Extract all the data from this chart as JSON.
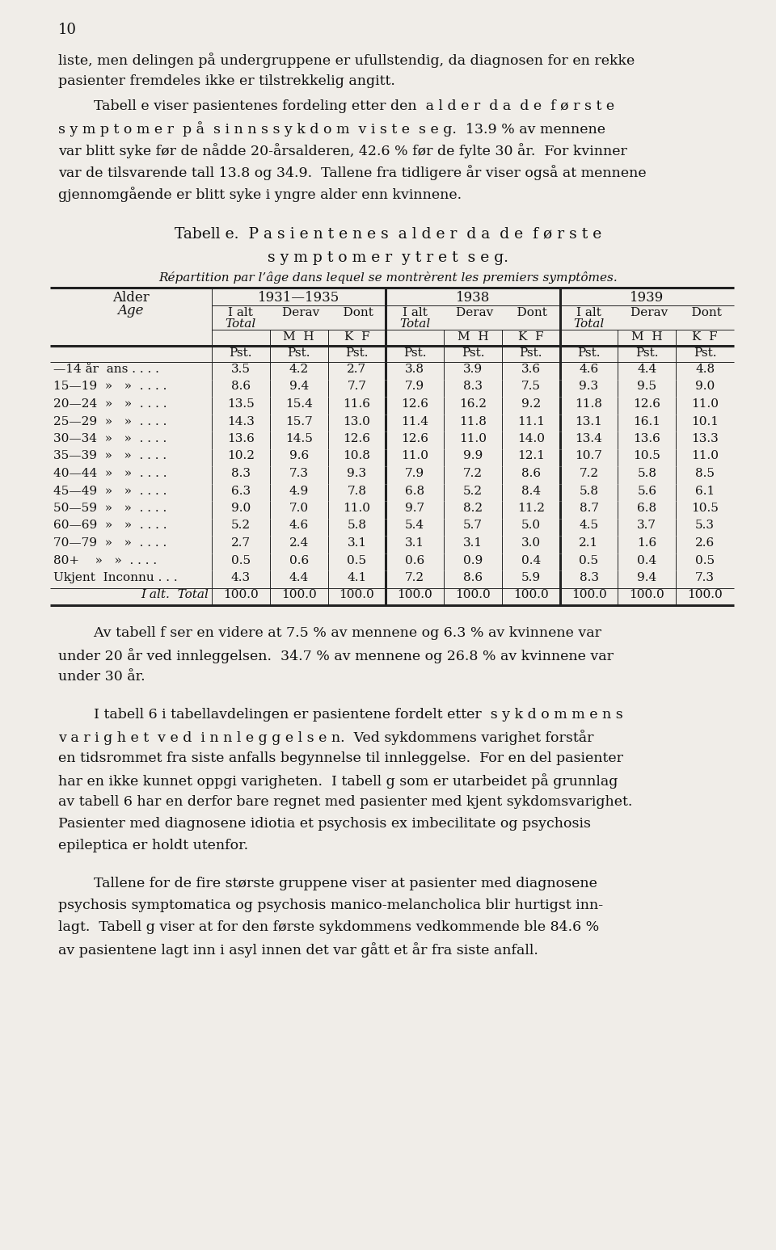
{
  "page_number": "10",
  "bg_color": "#f0ede8",
  "text_color": "#1a1a1a",
  "para1": "liste, men delingen på undergruppene er ufullstendig, da diagnosen for en rekke\npasienter fremdeles ikke er tilstrekkelig angitt.",
  "para2_line1": "        Tabell e viser pasientenes fordeling etter den  a l d e r  d a  d e  f ø r s t e",
  "para2_line2": "s y m p t o m e r  p å  s i n n s s y k d o m  v i s t e  s e g.  13.9 % av mennene",
  "para2_line3": "var blitt syke før de nådde 20-årsalderen, 42.6 % før de fylte 30 år.  For kvinner",
  "para2_line4": "var de tilsvarende tall 13.8 og 34.9.  Tallene fra tidligere år viser også at mennene",
  "para2_line5": "gjennomgående er blitt syke i yngre alder enn kvinnene.",
  "table_title1": "Tabell e.  P a s i e n t e n e s  a l d e r  d a  d e  f ø r s t e",
  "table_title2": "s y m p t o m e r  y t r e t  s e g.",
  "table_subtitle": "Répartition par l’âge dans lequel se montrèrent les premiers symptômes.",
  "col_headers_years": [
    "1931—1935",
    "1938",
    "1939"
  ],
  "rows": [
    {
      "label": "—14 år  ans . . . .",
      "v": [
        "3.5",
        "4.2",
        "2.7",
        "3.8",
        "3.9",
        "3.6",
        "4.6",
        "4.4",
        "4.8"
      ]
    },
    {
      "label": "15—19  »   »  . . . .",
      "v": [
        "8.6",
        "9.4",
        "7.7",
        "7.9",
        "8.3",
        "7.5",
        "9.3",
        "9.5",
        "9.0"
      ]
    },
    {
      "label": "20—24  »   »  . . . .",
      "v": [
        "13.5",
        "15.4",
        "11.6",
        "12.6",
        "16.2",
        "9.2",
        "11.8",
        "12.6",
        "11.0"
      ]
    },
    {
      "label": "25—29  »   »  . . . .",
      "v": [
        "14.3",
        "15.7",
        "13.0",
        "11.4",
        "11.8",
        "11.1",
        "13.1",
        "16.1",
        "10.1"
      ]
    },
    {
      "label": "30—34  »   »  . . . .",
      "v": [
        "13.6",
        "14.5",
        "12.6",
        "12.6",
        "11.0",
        "14.0",
        "13.4",
        "13.6",
        "13.3"
      ]
    },
    {
      "label": "35—39  »   »  . . . .",
      "v": [
        "10.2",
        "9.6",
        "10.8",
        "11.0",
        "9.9",
        "12.1",
        "10.7",
        "10.5",
        "11.0"
      ]
    },
    {
      "label": "40—44  »   »  . . . .",
      "v": [
        "8.3",
        "7.3",
        "9.3",
        "7.9",
        "7.2",
        "8.6",
        "7.2",
        "5.8",
        "8.5"
      ]
    },
    {
      "label": "45—49  »   »  . . . .",
      "v": [
        "6.3",
        "4.9",
        "7.8",
        "6.8",
        "5.2",
        "8.4",
        "5.8",
        "5.6",
        "6.1"
      ]
    },
    {
      "label": "50—59  »   »  . . . .",
      "v": [
        "9.0",
        "7.0",
        "11.0",
        "9.7",
        "8.2",
        "11.2",
        "8.7",
        "6.8",
        "10.5"
      ]
    },
    {
      "label": "60—69  »   »  . . . .",
      "v": [
        "5.2",
        "4.6",
        "5.8",
        "5.4",
        "5.7",
        "5.0",
        "4.5",
        "3.7",
        "5.3"
      ]
    },
    {
      "label": "70—79  »   »  . . . .",
      "v": [
        "2.7",
        "2.4",
        "3.1",
        "3.1",
        "3.1",
        "3.0",
        "2.1",
        "1.6",
        "2.6"
      ]
    },
    {
      "label": "80+    »   »  . . . .",
      "v": [
        "0.5",
        "0.6",
        "0.5",
        "0.6",
        "0.9",
        "0.4",
        "0.5",
        "0.4",
        "0.5"
      ]
    },
    {
      "label": "Ukjent  Inconnu . . .",
      "v": [
        "4.3",
        "4.4",
        "4.1",
        "7.2",
        "8.6",
        "5.9",
        "8.3",
        "9.4",
        "7.3"
      ]
    }
  ],
  "total_row": {
    "label": "I alt.  Total",
    "v": [
      "100.0",
      "100.0",
      "100.0",
      "100.0",
      "100.0",
      "100.0",
      "100.0",
      "100.0",
      "100.0"
    ]
  },
  "para_after1_line1": "        Av tabell f ser en videre at 7.5 % av mennene og 6.3 % av kvinnene var",
  "para_after1_line2": "under 20 år ved innleggelsen.  34.7 % av mennene og 26.8 % av kvinnene var",
  "para_after1_line3": "under 30 år.",
  "para_after2_line1": "        I tabell 6 i tabellavdelingen er pasientene fordelt etter  s y k d o m m e n s",
  "para_after2_line2": "v a r i g h e t  v e d  i n n l e g g e l s e n.  Ved sykdommens varighet forstår",
  "para_after2_line3": "en tidsrommet fra siste anfalls begynnelse til innleggelse.  For en del pasienter",
  "para_after2_line4": "har en ikke kunnet oppgi varigheten.  I tabell g som er utarbeidet på grunnlag",
  "para_after2_line5": "av tabell 6 har en derfor bare regnet med pasienter med kjent sykdomsvarighet.",
  "para_after2_line6": "Pasienter med diagnosene idiotia et psychosis ex imbecilitate og psychosis",
  "para_after2_line7": "epileptica er holdt utenfor.",
  "para_after3_line1": "        Tallene for de fire største gruppene viser at pasienter med diagnosene",
  "para_after3_line2": "psychosis symptomatica og psychosis manico-melancholica blir hurtigst inn-",
  "para_after3_line3": "lagt.  Tabell g viser at for den første sykdommens vedkommende ble 84.6 %",
  "para_after3_line4": "av pasientene lagt inn i asyl innen det var gått et år fra siste anfall."
}
